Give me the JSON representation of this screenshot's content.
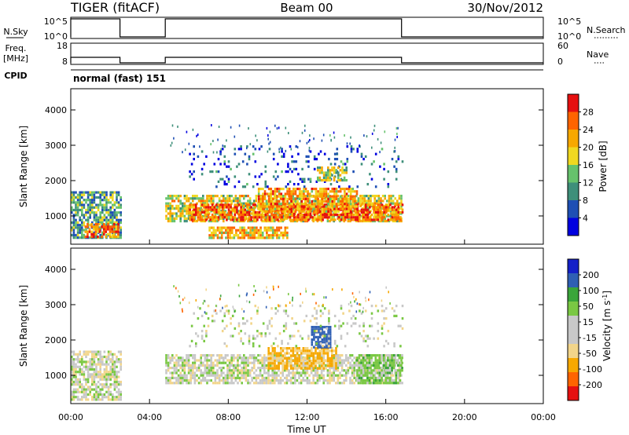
{
  "header": {
    "radar": "TIGER (fitACF)",
    "beam": "Beam 00",
    "date": "30/Nov/2012"
  },
  "colors": {
    "power_scale": [
      "#0000e0",
      "#1e4fb4",
      "#3e8f7a",
      "#66c26c",
      "#f0d820",
      "#f7a800",
      "#ff6400",
      "#e61010"
    ],
    "velocity_scale": [
      "#e61010",
      "#ff6400",
      "#f7a800",
      "#f2d58a",
      "#c8c8c8",
      "#c8c8c8",
      "#7ac843",
      "#3aa53a",
      "#2f5fb4",
      "#1420c8"
    ]
  },
  "chart_data": [
    {
      "type": "line",
      "id": "nsky-nsearch",
      "left_label": "N.Sky",
      "right_label": "N.Search",
      "left_ticks": [
        "10^5",
        "10^0"
      ],
      "right_ticks": [
        "10^5",
        "10^0"
      ],
      "x_unit": "hours UT",
      "xlim": [
        0,
        24
      ],
      "segments": [
        [
          0.0,
          2.5,
          "high"
        ],
        [
          4.8,
          16.8,
          "high"
        ]
      ]
    },
    {
      "type": "line",
      "id": "freq-nave",
      "left_label_lines": [
        "Freq.",
        "[MHz]"
      ],
      "right_label": "Nave",
      "left_ticks": [
        "18",
        "8"
      ],
      "right_ticks": [
        "60",
        "0"
      ],
      "xlim": [
        0,
        24
      ],
      "segments": [
        [
          0.0,
          2.5,
          "freq"
        ],
        [
          4.8,
          16.8,
          "freq"
        ]
      ]
    },
    {
      "type": "table",
      "id": "cpid",
      "label": "CPID",
      "program_text": "normal (fast) 151"
    },
    {
      "type": "heatmap",
      "id": "power",
      "ylabel": "Slant Range [km]",
      "yticks": [
        1000,
        2000,
        3000,
        4000
      ],
      "ylim": [
        200,
        4600
      ],
      "xlim": [
        0,
        24
      ],
      "colorbar": {
        "label": "Power [dB]",
        "ticks": [
          "4",
          "8",
          "12",
          "16",
          "20",
          "24",
          "28"
        ],
        "range": [
          0,
          32
        ]
      },
      "regions": [
        {
          "t0": 0.0,
          "t1": 2.5,
          "r0": 350,
          "r1": 1700,
          "level": 0.35
        },
        {
          "t0": 0.7,
          "t1": 2.4,
          "r0": 380,
          "r1": 800,
          "level": 0.8
        },
        {
          "t0": 4.8,
          "t1": 16.8,
          "r0": 850,
          "r1": 1600,
          "level": 0.55
        },
        {
          "t0": 6.0,
          "t1": 16.8,
          "r0": 900,
          "r1": 1350,
          "level": 0.82
        },
        {
          "t0": 9.5,
          "t1": 14.5,
          "r0": 1100,
          "r1": 1800,
          "level": 0.7
        },
        {
          "t0": 7.0,
          "t1": 11.0,
          "r0": 350,
          "r1": 700,
          "level": 0.65
        },
        {
          "t0": 6.0,
          "t1": 16.8,
          "r0": 1800,
          "r1": 3000,
          "level": 0.18
        },
        {
          "t0": 12.5,
          "t1": 14.0,
          "r0": 2000,
          "r1": 2400,
          "level": 0.5
        }
      ]
    },
    {
      "type": "heatmap",
      "id": "velocity",
      "ylabel": "Slant Range [km]",
      "yticks": [
        1000,
        2000,
        3000,
        4000
      ],
      "ylim": [
        200,
        4600
      ],
      "xlabel": "Time UT",
      "xticks": [
        "00:00",
        "04:00",
        "08:00",
        "12:00",
        "16:00",
        "20:00",
        "00:00"
      ],
      "xlim": [
        0,
        24
      ],
      "colorbar": {
        "label": "Velocity [m s^-1]",
        "ticks": [
          "200",
          "100",
          "50",
          "15",
          "-15",
          "-50",
          "-100",
          "-200"
        ],
        "range": [
          -250,
          250
        ]
      },
      "regions": [
        {
          "t0": 0.0,
          "t1": 2.5,
          "r0": 300,
          "r1": 1700,
          "vel": 0
        },
        {
          "t0": 4.8,
          "t1": 16.8,
          "r0": 800,
          "r1": 1600,
          "vel": 0
        },
        {
          "t0": 10.0,
          "t1": 13.5,
          "r0": 1200,
          "r1": 1800,
          "vel": -60
        },
        {
          "t0": 14.5,
          "t1": 16.8,
          "r0": 800,
          "r1": 1600,
          "vel": 30
        },
        {
          "t0": 12.2,
          "t1": 13.2,
          "r0": 1800,
          "r1": 2400,
          "vel": 160
        },
        {
          "t0": 6.0,
          "t1": 16.8,
          "r0": 1800,
          "r1": 3000,
          "vel": 0
        }
      ]
    }
  ]
}
